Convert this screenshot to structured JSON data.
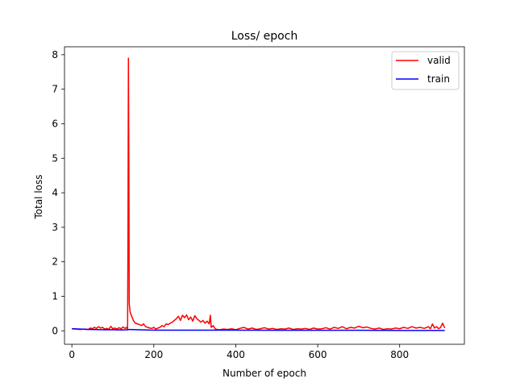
{
  "chart_data": {
    "type": "line",
    "title": "Loss/ epoch",
    "xlabel": "Number of epoch",
    "ylabel": "Total loss",
    "xlim": [
      -18,
      958
    ],
    "ylim": [
      -0.39,
      8.23
    ],
    "xticks": [
      0,
      200,
      400,
      600,
      800
    ],
    "yticks": [
      0,
      1,
      2,
      3,
      4,
      5,
      6,
      7,
      8
    ],
    "grid": false,
    "legend_position": "top-right",
    "series": [
      {
        "name": "valid",
        "color": "#ff0000",
        "points": [
          [
            0,
            0.06
          ],
          [
            10,
            0.05
          ],
          [
            20,
            0.04
          ],
          [
            30,
            0.05
          ],
          [
            40,
            0.04
          ],
          [
            45,
            0.08
          ],
          [
            50,
            0.06
          ],
          [
            55,
            0.1
          ],
          [
            60,
            0.07
          ],
          [
            65,
            0.12
          ],
          [
            70,
            0.08
          ],
          [
            75,
            0.1
          ],
          [
            80,
            0.05
          ],
          [
            85,
            0.07
          ],
          [
            90,
            0.04
          ],
          [
            95,
            0.13
          ],
          [
            100,
            0.06
          ],
          [
            105,
            0.08
          ],
          [
            110,
            0.05
          ],
          [
            115,
            0.09
          ],
          [
            120,
            0.06
          ],
          [
            125,
            0.11
          ],
          [
            130,
            0.07
          ],
          [
            134,
            0.1
          ],
          [
            136,
            0.04
          ],
          [
            137,
            3.0
          ],
          [
            138,
            7.9
          ],
          [
            139,
            5.0
          ],
          [
            140,
            0.8
          ],
          [
            142,
            0.55
          ],
          [
            145,
            0.45
          ],
          [
            150,
            0.3
          ],
          [
            155,
            0.22
          ],
          [
            160,
            0.2
          ],
          [
            165,
            0.18
          ],
          [
            170,
            0.15
          ],
          [
            175,
            0.2
          ],
          [
            180,
            0.12
          ],
          [
            185,
            0.1
          ],
          [
            190,
            0.08
          ],
          [
            195,
            0.07
          ],
          [
            200,
            0.1
          ],
          [
            205,
            0.05
          ],
          [
            210,
            0.08
          ],
          [
            215,
            0.1
          ],
          [
            220,
            0.15
          ],
          [
            225,
            0.12
          ],
          [
            230,
            0.2
          ],
          [
            235,
            0.18
          ],
          [
            240,
            0.22
          ],
          [
            245,
            0.25
          ],
          [
            250,
            0.3
          ],
          [
            255,
            0.35
          ],
          [
            260,
            0.42
          ],
          [
            265,
            0.3
          ],
          [
            270,
            0.45
          ],
          [
            275,
            0.38
          ],
          [
            280,
            0.46
          ],
          [
            285,
            0.32
          ],
          [
            290,
            0.4
          ],
          [
            295,
            0.28
          ],
          [
            300,
            0.44
          ],
          [
            305,
            0.35
          ],
          [
            310,
            0.3
          ],
          [
            315,
            0.25
          ],
          [
            320,
            0.3
          ],
          [
            325,
            0.22
          ],
          [
            330,
            0.28
          ],
          [
            335,
            0.2
          ],
          [
            338,
            0.45
          ],
          [
            340,
            0.1
          ],
          [
            345,
            0.15
          ],
          [
            350,
            0.05
          ],
          [
            355,
            0.04
          ],
          [
            360,
            0.03
          ],
          [
            370,
            0.05
          ],
          [
            380,
            0.04
          ],
          [
            390,
            0.06
          ],
          [
            400,
            0.03
          ],
          [
            410,
            0.07
          ],
          [
            420,
            0.1
          ],
          [
            430,
            0.05
          ],
          [
            440,
            0.08
          ],
          [
            450,
            0.04
          ],
          [
            460,
            0.06
          ],
          [
            470,
            0.09
          ],
          [
            480,
            0.05
          ],
          [
            490,
            0.07
          ],
          [
            500,
            0.04
          ],
          [
            510,
            0.06
          ],
          [
            520,
            0.05
          ],
          [
            530,
            0.08
          ],
          [
            540,
            0.04
          ],
          [
            550,
            0.06
          ],
          [
            560,
            0.05
          ],
          [
            570,
            0.07
          ],
          [
            580,
            0.04
          ],
          [
            590,
            0.08
          ],
          [
            600,
            0.05
          ],
          [
            610,
            0.06
          ],
          [
            620,
            0.09
          ],
          [
            630,
            0.05
          ],
          [
            640,
            0.1
          ],
          [
            650,
            0.07
          ],
          [
            660,
            0.12
          ],
          [
            670,
            0.06
          ],
          [
            680,
            0.1
          ],
          [
            690,
            0.08
          ],
          [
            700,
            0.13
          ],
          [
            710,
            0.09
          ],
          [
            720,
            0.11
          ],
          [
            730,
            0.07
          ],
          [
            740,
            0.05
          ],
          [
            750,
            0.08
          ],
          [
            760,
            0.04
          ],
          [
            770,
            0.06
          ],
          [
            780,
            0.05
          ],
          [
            790,
            0.08
          ],
          [
            800,
            0.06
          ],
          [
            810,
            0.1
          ],
          [
            820,
            0.07
          ],
          [
            830,
            0.12
          ],
          [
            840,
            0.08
          ],
          [
            850,
            0.1
          ],
          [
            860,
            0.07
          ],
          [
            870,
            0.12
          ],
          [
            875,
            0.06
          ],
          [
            880,
            0.2
          ],
          [
            885,
            0.08
          ],
          [
            890,
            0.12
          ],
          [
            895,
            0.06
          ],
          [
            900,
            0.1
          ],
          [
            905,
            0.22
          ],
          [
            910,
            0.08
          ]
        ]
      },
      {
        "name": "train",
        "color": "#0000ff",
        "points": [
          [
            0,
            0.06
          ],
          [
            20,
            0.05
          ],
          [
            40,
            0.04
          ],
          [
            60,
            0.035
          ],
          [
            80,
            0.03
          ],
          [
            100,
            0.03
          ],
          [
            120,
            0.025
          ],
          [
            137,
            0.03
          ],
          [
            140,
            0.04
          ],
          [
            160,
            0.03
          ],
          [
            200,
            0.02
          ],
          [
            300,
            0.02
          ],
          [
            400,
            0.02
          ],
          [
            500,
            0.015
          ],
          [
            600,
            0.015
          ],
          [
            700,
            0.015
          ],
          [
            800,
            0.01
          ],
          [
            910,
            0.01
          ]
        ]
      }
    ]
  }
}
